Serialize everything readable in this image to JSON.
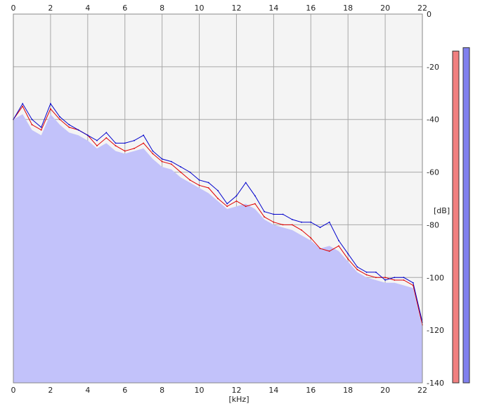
{
  "chart_data": {
    "type": "area",
    "title": "",
    "xlabel": "[kHz]",
    "ylabel": "[dB]",
    "xlim": [
      0,
      22
    ],
    "ylim": [
      -140,
      0
    ],
    "x_ticks": [
      "0",
      "2",
      "4",
      "6",
      "8",
      "10",
      "12",
      "14",
      "16",
      "18",
      "20",
      "22"
    ],
    "y_ticks": [
      "0",
      "-20",
      "-40",
      "-60",
      "-80",
      "-100",
      "-120",
      "-140"
    ],
    "grid": true,
    "legend": "none",
    "colors": {
      "plot_bg": "#f4f4f4",
      "fill": "#c2c2fa",
      "grid": "#a8a8a8",
      "red_series": "#e00000",
      "blue_series": "#0000cc",
      "left_meter": "#f08080",
      "right_meter": "#8080ee"
    },
    "x": [
      0,
      0.5,
      1,
      1.5,
      2,
      2.5,
      3,
      3.5,
      4,
      4.5,
      5,
      5.5,
      6,
      6.5,
      7,
      7.5,
      8,
      8.5,
      9,
      9.5,
      10,
      10.5,
      11,
      11.5,
      12,
      12.5,
      13,
      13.5,
      14,
      14.5,
      15,
      15.5,
      16,
      16.5,
      17,
      17.5,
      18,
      18.5,
      19,
      19.5,
      20,
      20.5,
      21,
      21.5,
      22
    ],
    "series": [
      {
        "values": [
          -40,
          -35,
          -42,
          -44,
          -36,
          -40,
          -43,
          -44,
          -46,
          -50,
          -47,
          -50,
          -52,
          -51,
          -49,
          -53,
          -56,
          -57,
          -60,
          -63,
          -65,
          -66,
          -70,
          -73,
          -71,
          -73,
          -72,
          -77,
          -79,
          -80,
          -80,
          -82,
          -85,
          -89,
          -90,
          -88,
          -93,
          -97,
          -99,
          -100,
          -100,
          -101,
          -101,
          -103,
          -118
        ]
      },
      {
        "values": [
          -40,
          -34,
          -40,
          -43,
          -34,
          -39,
          -42,
          -44,
          -46,
          -48,
          -45,
          -49,
          -49,
          -48,
          -46,
          -52,
          -55,
          -56,
          -58,
          -60,
          -63,
          -64,
          -67,
          -72,
          -69,
          -64,
          -69,
          -75,
          -76,
          -76,
          -78,
          -79,
          -79,
          -81,
          -79,
          -86,
          -91,
          -96,
          -98,
          -98,
          -101,
          -100,
          -100,
          -102,
          -117
        ]
      }
    ],
    "filled_level_db": [
      -40,
      -38,
      -44,
      -46,
      -38,
      -42,
      -45,
      -46,
      -48,
      -51,
      -49,
      -52,
      -53,
      -52,
      -51,
      -55,
      -58,
      -59,
      -62,
      -64,
      -66,
      -68,
      -71,
      -74,
      -73,
      -72,
      -74,
      -78,
      -80,
      -81,
      -82,
      -84,
      -86,
      -89,
      -88,
      -90,
      -94,
      -98,
      -100,
      -101,
      -102,
      -102,
      -103,
      -104,
      -119
    ],
    "level_meters": [
      {
        "channel": "left",
        "level_fraction": 0.97
      },
      {
        "channel": "right",
        "level_fraction": 0.98
      }
    ]
  }
}
